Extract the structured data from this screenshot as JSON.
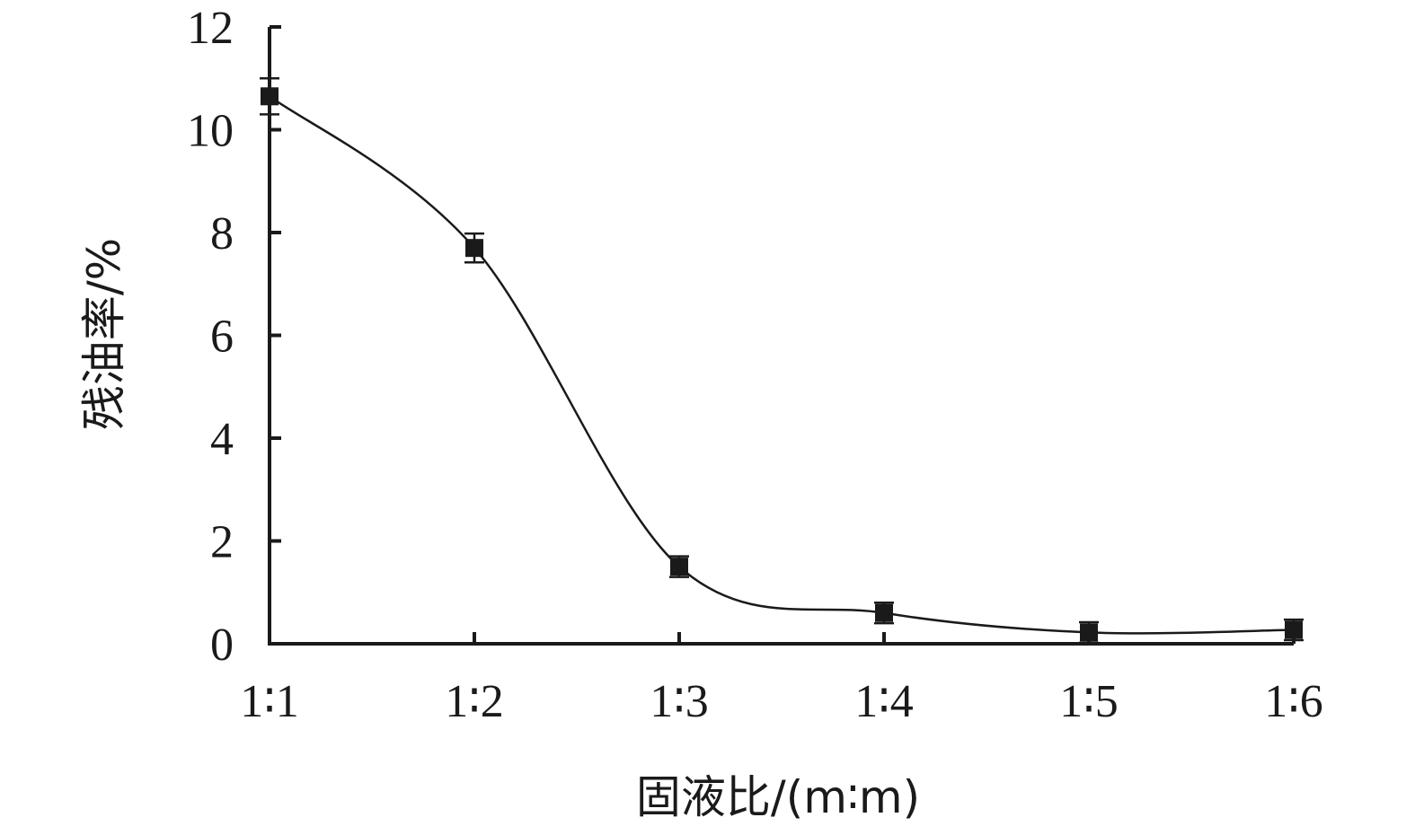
{
  "chart_data": {
    "type": "line",
    "title": "",
    "xlabel": "固液比/(m∶m)",
    "ylabel": "残油率/%",
    "categories": [
      "1∶1",
      "1∶2",
      "1∶3",
      "1∶4",
      "1∶5",
      "1∶6"
    ],
    "values": [
      10.65,
      7.7,
      1.5,
      0.6,
      0.22,
      0.27
    ],
    "errors": [
      0.35,
      0.28,
      0.2,
      0.2,
      0.2,
      0.2
    ],
    "ylim": [
      0,
      12
    ],
    "yticks": [
      "0",
      "2",
      "4",
      "6",
      "8",
      "10",
      "12"
    ],
    "grid": false,
    "smooth": true,
    "marker": "square",
    "color": "#1a1a1a"
  }
}
